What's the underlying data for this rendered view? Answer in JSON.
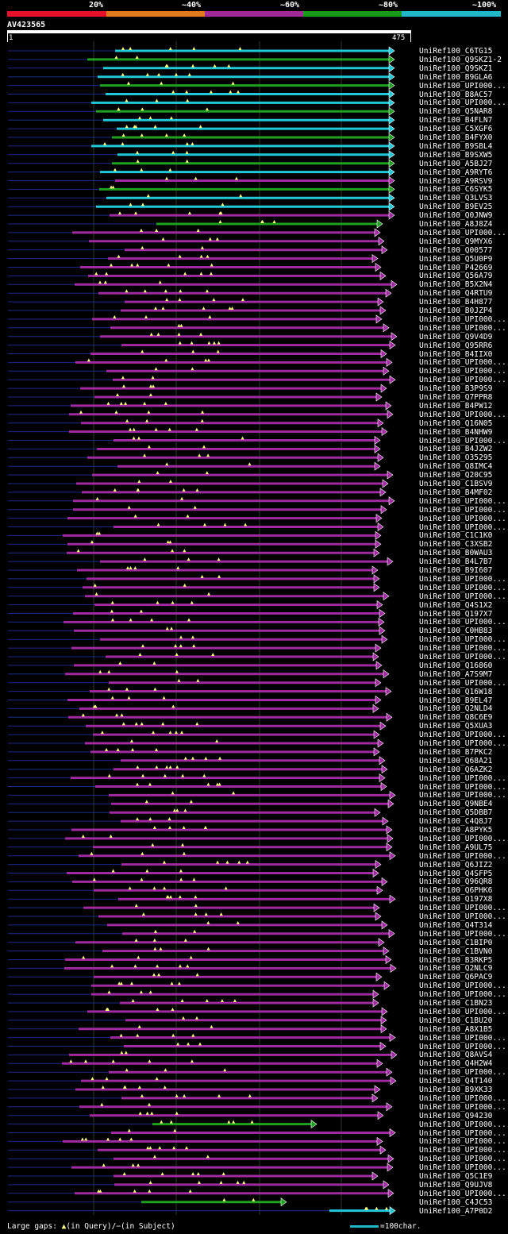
{
  "header": {
    "percent_labels": [
      "20%",
      "~40%",
      "~60%",
      "~80%",
      "~100%"
    ],
    "color_bands": [
      "#e8102a",
      "#e07a1c",
      "#a02a98",
      "#1a9a1a",
      "#20b8c8"
    ]
  },
  "query": {
    "id": "AV423565",
    "start": "1",
    "end": "475"
  },
  "hit_colors": {
    "cyan": "#20c8d8",
    "green": "#20a020",
    "magenta": "#a02aa0",
    "blue": "#1a2a8a",
    "gap": "#ffff80"
  },
  "hits": [
    "UniRef100_C6TG15",
    "UniRef100_Q9SKZ1-2",
    "UniRef100_Q9SKZ1",
    "UniRef100_B9GLA6",
    "UniRef100_UPI000...",
    "UniRef100_B8AC57",
    "UniRef100_UPI000...",
    "UniRef100_Q5NAR8",
    "UniRef100_B4FLN7",
    "UniRef100_C5XGF6",
    "UniRef100_B4FYX0",
    "UniRef100_B9SBL4",
    "UniRef100_B9SXW5",
    "UniRef100_A5BJ27",
    "UniRef100_A9RYT6",
    "UniRef100_A9RSV9",
    "UniRef100_C6SYK5",
    "UniRef100_Q3LVS3",
    "UniRef100_B9EV25",
    "UniRef100_Q0JNW9",
    "UniRef100_A8J8Z4",
    "UniRef100_UPI000...",
    "UniRef100_Q9MYX6",
    "UniRef100_Q00577",
    "UniRef100_Q5U0P9",
    "UniRef100_P42669",
    "UniRef100_Q56A79",
    "UniRef100_B5X2N4",
    "UniRef100_Q4RTU9",
    "UniRef100_B4H877",
    "UniRef100_B0JZP4",
    "UniRef100_UPI000...",
    "UniRef100_UPI000...",
    "UniRef100_Q9V4D9",
    "UniRef100_Q95RR6",
    "UniRef100_B4IIX0",
    "UniRef100_UPI000...",
    "UniRef100_UPI000...",
    "UniRef100_UPI000...",
    "UniRef100_B3P9S9",
    "UniRef100_Q7PPR8",
    "UniRef100_B4PW12",
    "UniRef100_UPI000...",
    "UniRef100_Q16N05",
    "UniRef100_B4NHW9",
    "UniRef100_UPI000...",
    "UniRef100_B4JZW2",
    "UniRef100_O35295",
    "UniRef100_Q8IMC4",
    "UniRef100_Q20C95",
    "UniRef100_C1BSV9",
    "UniRef100_B4MF02",
    "UniRef100_UPI000...",
    "UniRef100_UPI000...",
    "UniRef100_UPI000...",
    "UniRef100_UPI000...",
    "UniRef100_C1C1K0",
    "UniRef100_C3XSB2",
    "UniRef100_B0WAU3",
    "UniRef100_B4L7B7",
    "UniRef100_B9I607",
    "UniRef100_UPI000...",
    "UniRef100_UPI000...",
    "UniRef100_UPI000...",
    "UniRef100_Q4S1X2",
    "UniRef100_Q197X7",
    "UniRef100_UPI000...",
    "UniRef100_C0HB83",
    "UniRef100_UPI000...",
    "UniRef100_UPI000...",
    "UniRef100_UPI000...",
    "UniRef100_Q16860",
    "UniRef100_A7S9M7",
    "UniRef100_UPI000...",
    "UniRef100_Q16W18",
    "UniRef100_B9EL47",
    "UniRef100_Q2NLD4",
    "UniRef100_Q8C6E9",
    "UniRef100_Q5XUA3",
    "UniRef100_UPI000...",
    "UniRef100_UPI000...",
    "UniRef100_B7PKC2",
    "UniRef100_Q68A21",
    "UniRef100_Q6AZK2",
    "UniRef100_UPI000...",
    "UniRef100_UPI000...",
    "UniRef100_UPI000...",
    "UniRef100_Q9NBE4",
    "UniRef100_Q5DBB7",
    "UniRef100_C4Q8J7",
    "UniRef100_A8PYK5",
    "UniRef100_UPI000...",
    "UniRef100_A9UL75",
    "UniRef100_UPI000...",
    "UniRef100_Q6JIZ2",
    "UniRef100_Q4SFP5",
    "UniRef100_Q96QR8",
    "UniRef100_Q6PHK6",
    "UniRef100_Q197X8",
    "UniRef100_UPI000...",
    "UniRef100_UPI000...",
    "UniRef100_Q4T314",
    "UniRef100_UPI000...",
    "UniRef100_C1BIP0",
    "UniRef100_C1BVN0",
    "UniRef100_B3RKP5",
    "UniRef100_Q2NLC9",
    "UniRef100_Q6PAC9",
    "UniRef100_UPI000...",
    "UniRef100_UPI000...",
    "UniRef100_C1BN23",
    "UniRef100_UPI000...",
    "UniRef100_C1BU20",
    "UniRef100_A8X1B5",
    "UniRef100_UPI000...",
    "UniRef100_UPI000...",
    "UniRef100_Q8AVS4",
    "UniRef100_Q4H2W4",
    "UniRef100_UPI000...",
    "UniRef100_Q4T140",
    "UniRef100_B9XK33",
    "UniRef100_UPI000...",
    "UniRef100_UPI000...",
    "UniRef100_Q94230",
    "UniRef100_UPI000...",
    "UniRef100_UPI000...",
    "UniRef100_UPI000...",
    "UniRef100_UPI000...",
    "UniRef100_UPI000...",
    "UniRef100_UPI000...",
    "UniRef100_Q5C1E9",
    "UniRef100_Q9UJV8",
    "UniRef100_UPI000...",
    "UniRef100_C4JC53",
    "UniRef100_A7P0D2"
  ],
  "legend": {
    "gaps_label": "Large gaps: ",
    "gaps_query": "(in Query)/",
    "gaps_subject": "(in Subject)",
    "scale_label": "=100char."
  }
}
